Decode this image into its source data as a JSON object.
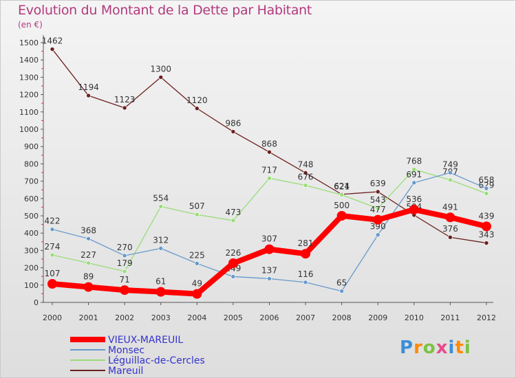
{
  "chart_data": {
    "type": "line",
    "title": "Evolution du Montant de la Dette par Habitant",
    "unit": "(en €)",
    "categories": [
      "2000",
      "2001",
      "2002",
      "2003",
      "2004",
      "2005",
      "2006",
      "2007",
      "2008",
      "2009",
      "2010",
      "2011",
      "2012"
    ],
    "ylim": [
      0,
      1500
    ],
    "yticks": [
      0,
      100,
      200,
      300,
      400,
      500,
      600,
      700,
      800,
      900,
      1000,
      1100,
      1200,
      1300,
      1400,
      1500
    ],
    "grid": false,
    "legend_position": "bottom-left",
    "series": [
      {
        "name": "Mareuil",
        "color": "#6b1f1f",
        "lineWidth": 1.3,
        "marker": 3,
        "values": [
          1462,
          1194,
          1123,
          1300,
          1120,
          986,
          868,
          748,
          624,
          639,
          504,
          376,
          343
        ]
      },
      {
        "name": "Léguillac-de-Cercles",
        "color": "#99dd77",
        "lineWidth": 1.3,
        "marker": 3,
        "values": [
          274,
          227,
          179,
          554,
          507,
          473,
          717,
          676,
          621,
          543,
          768,
          707,
          629
        ]
      },
      {
        "name": "Monsec",
        "color": "#6699cc",
        "lineWidth": 1.3,
        "marker": 3,
        "values": [
          422,
          368,
          270,
          312,
          225,
          149,
          137,
          116,
          65,
          390,
          691,
          749,
          658
        ]
      },
      {
        "name": "VIEUX-MAREUIL",
        "color": "#ff0000",
        "lineWidth": 8,
        "marker": 7,
        "values": [
          107,
          89,
          71,
          61,
          49,
          226,
          307,
          281,
          500,
          477,
          536,
          491,
          439
        ]
      }
    ]
  },
  "legend": [
    {
      "name": "VIEUX-MAREUIL",
      "color": "#ff0000",
      "thick": true
    },
    {
      "name": "Monsec",
      "color": "#6699cc",
      "thick": false
    },
    {
      "name": "Léguillac-de-Cercles",
      "color": "#99dd77",
      "thick": false
    },
    {
      "name": "Mareuil",
      "color": "#6b1f1f",
      "thick": false
    }
  ],
  "logo": {
    "letters": [
      "P",
      "r",
      "o",
      "x",
      "i",
      "t",
      "i"
    ],
    "colors": [
      "#3a8fd8",
      "#ff8a00",
      "#7cc242",
      "#e84b8a",
      "#3a8fd8",
      "#ff8a00",
      "#7cc242"
    ]
  }
}
